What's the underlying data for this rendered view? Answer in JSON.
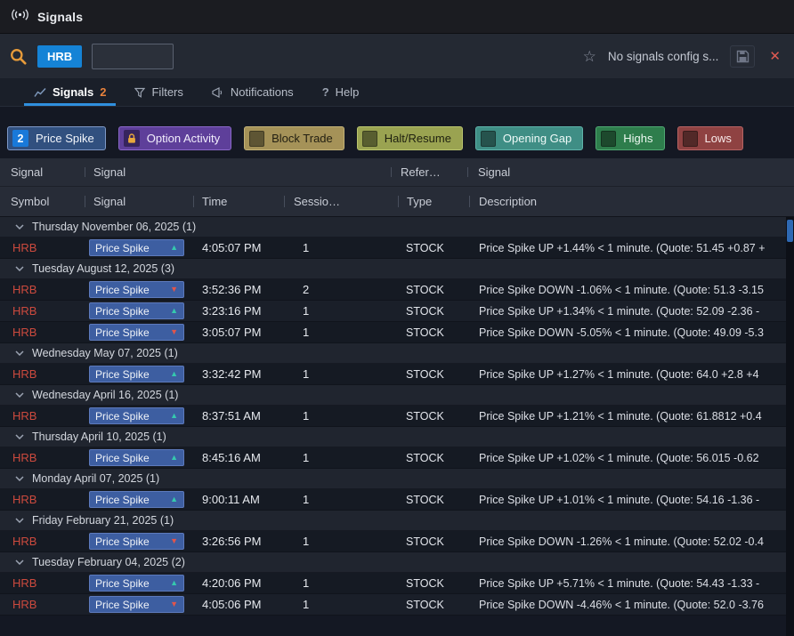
{
  "window": {
    "title": "Signals"
  },
  "toolbar": {
    "symbol": "HRB",
    "search_value": "",
    "search_placeholder": "",
    "config_status": "No signals config s..."
  },
  "tabs": {
    "signals": {
      "label": "Signals",
      "badge": "2"
    },
    "filters": {
      "label": "Filters"
    },
    "notifications": {
      "label": "Notifications"
    },
    "help": {
      "label": "Help"
    }
  },
  "filter_chips": [
    {
      "label": "Price Spike",
      "leading": "count",
      "count": "2",
      "bg": "#31507f",
      "border": "#7e98c6",
      "text": "#f2f5fa",
      "badge_bg": "#1979d9"
    },
    {
      "label": "Option Activity",
      "leading": "lock",
      "bg": "#5e3f9a",
      "border": "#8a68c8",
      "text": "#f2eefc",
      "lock_color": "#e8a83c"
    },
    {
      "label": "Block Trade",
      "leading": "checkbox",
      "bg": "#a59258",
      "border": "#c2b177",
      "text": "#211e11"
    },
    {
      "label": "Halt/Resume",
      "leading": "checkbox",
      "bg": "#9aa351",
      "border": "#b9c46e",
      "text": "#1e2010"
    },
    {
      "label": "Opening Gap",
      "leading": "checkbox",
      "bg": "#3f8e85",
      "border": "#5fb3aa",
      "text": "#eefaf8"
    },
    {
      "label": "Highs",
      "leading": "checkbox",
      "bg": "#2e7d4c",
      "border": "#4fa873",
      "text": "#ecf8f0"
    },
    {
      "label": "Lows",
      "leading": "checkbox",
      "bg": "#8f4242",
      "border": "#b56363",
      "text": "#f8eaea"
    }
  ],
  "table": {
    "group_header_row": [
      "Signal",
      "Signal",
      "Refer…",
      "Signal"
    ],
    "column_header_row": [
      "Symbol",
      "Signal",
      "Time",
      "Sessio…",
      "Type",
      "Description"
    ],
    "groups": [
      {
        "date": "Thursday November 06, 2025",
        "count": "1",
        "rows": [
          {
            "symbol": "HRB",
            "signal": "Price Spike",
            "direction": "up",
            "time": "4:05:07 PM",
            "session": "1",
            "type": "STOCK",
            "description": "Price Spike UP +1.44% < 1 minute. (Quote: 51.45 +0.87 +"
          }
        ]
      },
      {
        "date": "Tuesday August 12, 2025",
        "count": "3",
        "rows": [
          {
            "symbol": "HRB",
            "signal": "Price Spike",
            "direction": "down",
            "time": "3:52:36 PM",
            "session": "2",
            "type": "STOCK",
            "description": "Price Spike DOWN -1.06% < 1 minute. (Quote: 51.3 -3.15"
          },
          {
            "symbol": "HRB",
            "signal": "Price Spike",
            "direction": "up",
            "time": "3:23:16 PM",
            "session": "1",
            "type": "STOCK",
            "description": "Price Spike UP +1.34% < 1 minute. (Quote: 52.09 -2.36 -"
          },
          {
            "symbol": "HRB",
            "signal": "Price Spike",
            "direction": "down",
            "time": "3:05:07 PM",
            "session": "1",
            "type": "STOCK",
            "description": "Price Spike DOWN -5.05% < 1 minute. (Quote: 49.09 -5.3"
          }
        ]
      },
      {
        "date": "Wednesday May 07, 2025",
        "count": "1",
        "rows": [
          {
            "symbol": "HRB",
            "signal": "Price Spike",
            "direction": "up",
            "time": "3:32:42 PM",
            "session": "1",
            "type": "STOCK",
            "description": "Price Spike UP +1.27% < 1 minute. (Quote: 64.0 +2.8 +4"
          }
        ]
      },
      {
        "date": "Wednesday April 16, 2025",
        "count": "1",
        "rows": [
          {
            "symbol": "HRB",
            "signal": "Price Spike",
            "direction": "up",
            "time": "8:37:51 AM",
            "session": "1",
            "type": "STOCK",
            "description": "Price Spike UP +1.21% < 1 minute. (Quote: 61.8812 +0.4"
          }
        ]
      },
      {
        "date": "Thursday April 10, 2025",
        "count": "1",
        "rows": [
          {
            "symbol": "HRB",
            "signal": "Price Spike",
            "direction": "up",
            "time": "8:45:16 AM",
            "session": "1",
            "type": "STOCK",
            "description": "Price Spike UP +1.02% < 1 minute. (Quote: 56.015 -0.62"
          }
        ]
      },
      {
        "date": "Monday April 07, 2025",
        "count": "1",
        "rows": [
          {
            "symbol": "HRB",
            "signal": "Price Spike",
            "direction": "up",
            "time": "9:00:11 AM",
            "session": "1",
            "type": "STOCK",
            "description": "Price Spike UP +1.01% < 1 minute. (Quote: 54.16 -1.36 -"
          }
        ]
      },
      {
        "date": "Friday February 21, 2025",
        "count": "1",
        "rows": [
          {
            "symbol": "HRB",
            "signal": "Price Spike",
            "direction": "down",
            "time": "3:26:56 PM",
            "session": "1",
            "type": "STOCK",
            "description": "Price Spike DOWN -1.26% < 1 minute. (Quote: 52.02 -0.4"
          }
        ]
      },
      {
        "date": "Tuesday February 04, 2025",
        "count": "2",
        "rows": [
          {
            "symbol": "HRB",
            "signal": "Price Spike",
            "direction": "up",
            "time": "4:20:06 PM",
            "session": "1",
            "type": "STOCK",
            "description": "Price Spike UP +5.71% < 1 minute. (Quote: 54.43 -1.33 -"
          },
          {
            "symbol": "HRB",
            "signal": "Price Spike",
            "direction": "down",
            "time": "4:05:06 PM",
            "session": "1",
            "type": "STOCK",
            "description": "Price Spike DOWN -4.46% < 1 minute. (Quote: 52.0 -3.76"
          }
        ]
      }
    ]
  },
  "colors": {
    "accent_blue": "#2f8fde",
    "symbol_red": "#cc4a3e",
    "signal_chip_bg": "#3d5ea1",
    "up_arrow": "#35c9ae",
    "down_arrow": "#e2554b",
    "scroll_thumb": "#2e69b3",
    "tab_badge_orange": "#e8823c"
  }
}
